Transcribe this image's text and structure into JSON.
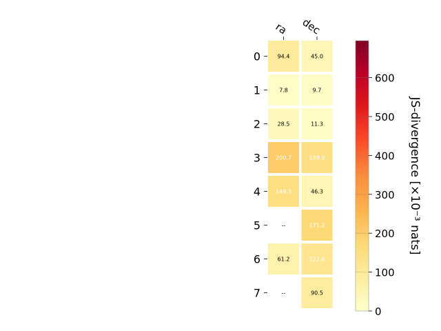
{
  "chart_data": {
    "type": "heatmap",
    "columns": [
      "ra",
      "dec"
    ],
    "rows": [
      "0",
      "1",
      "2",
      "3",
      "4",
      "5",
      "6",
      "7"
    ],
    "values": [
      [
        94.4,
        45.0
      ],
      [
        7.8,
        9.7
      ],
      [
        28.5,
        11.3
      ],
      [
        200.7,
        139.9
      ],
      [
        149.3,
        46.3
      ],
      [
        null,
        171.2
      ],
      [
        61.2,
        122.6
      ],
      [
        null,
        90.5
      ]
    ],
    "labels": [
      [
        "94.4",
        "45.0"
      ],
      [
        "7.8",
        "9.7"
      ],
      [
        "28.5",
        "11.3"
      ],
      [
        "200.7",
        "139.9"
      ],
      [
        "149.3",
        "46.3"
      ],
      [
        "--",
        "171.2"
      ],
      [
        "61.2",
        "122.6"
      ],
      [
        "--",
        "90.5"
      ]
    ],
    "colorbar": {
      "label": "JS-divergence [×10⁻³ nats]",
      "min": 0,
      "max": 695,
      "ticks": [
        0,
        100,
        200,
        300,
        400,
        500,
        600
      ],
      "colormap": "YlOrRd"
    }
  }
}
